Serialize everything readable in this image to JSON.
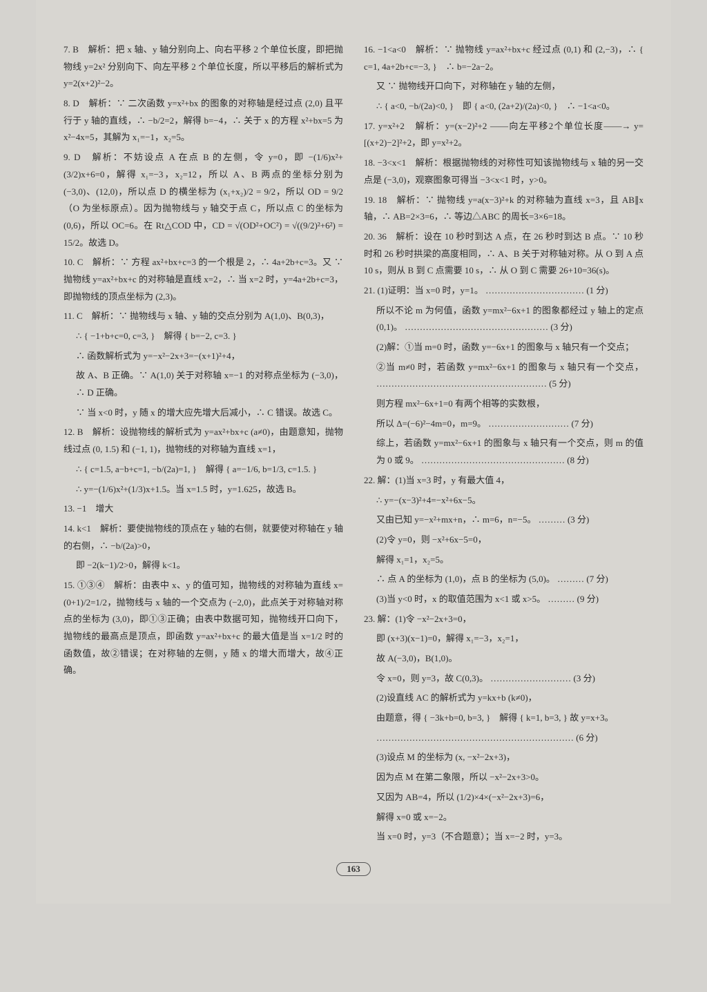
{
  "page_number": "163",
  "left": {
    "p7": "7. B　解析：把 x 轴、y 轴分别向上、向右平移 2 个单位长度，即把抛物线 y=2x² 分别向下、向左平移 2 个单位长度，所以平移后的解析式为 y=2(x+2)²−2。",
    "p8": "8. D　解析：∵ 二次函数 y=x²+bx 的图象的对称轴是经过点 (2,0) 且平行于 y 轴的直线，∴ −b/2=2，解得 b=−4，∴ 关于 x 的方程 x²+bx=5 为 x²−4x=5，其解为 x₁=−1，x₂=5。",
    "p9": "9. D　解析：不妨设点 A 在点 B 的左侧，令 y=0，即 −(1/6)x²+(3/2)x+6=0，解得 x₁=−3，x₂=12，所以 A、B 两点的坐标分别为 (−3,0)、(12,0)，所以点 D 的横坐标为 (x₁+x₂)/2 = 9/2，所以 OD = 9/2（O 为坐标原点）。因为抛物线与 y 轴交于点 C，所以点 C 的坐标为 (0,6)，所以 OC=6。在 Rt△COD 中，CD = √(OD²+OC²) = √((9/2)²+6²) = 15/2。故选 D。",
    "p10": "10. C　解析：∵ 方程 ax²+bx+c=3 的一个根是 2，∴ 4a+2b+c=3。又 ∵ 抛物线 y=ax²+bx+c 的对称轴是直线 x=2，∴ 当 x=2 时，y=4a+2b+c=3，即抛物线的顶点坐标为 (2,3)。",
    "p11a": "11. C　解析：∵ 抛物线与 x 轴、y 轴的交点分别为 A(1,0)、B(0,3)，",
    "p11b": "∴ { −1+b+c=0,  c=3, }　解得 { b=−2,  c=3. }",
    "p11c": "∴ 函数解析式为 y=−x²−2x+3=−(x+1)²+4，",
    "p11d": "故 A、B 正确。∵ A(1,0) 关于对称轴 x=−1 的对称点坐标为 (−3,0)，∴ D 正确。",
    "p11e": "∵ 当 x<0 时，y 随 x 的增大应先增大后减小，∴ C 错误。故选 C。",
    "p12a": "12. B　解析：设抛物线的解析式为 y=ax²+bx+c (a≠0)，由题意知，抛物线过点 (0, 1.5) 和 (−1, 1)，抛物线的对称轴为直线 x=1，",
    "p12b": "∴ { c=1.5,  a−b+c=1,  −b/(2a)=1, }　解得 { a=−1/6,  b=1/3,  c=1.5. }",
    "p12c": "∴ y=−(1/6)x²+(1/3)x+1.5。当 x=1.5 时，y=1.625，故选 B。",
    "p13": "13. −1　增大",
    "p14a": "14. k<1　解析：要使抛物线的顶点在 y 轴的右侧，就要使对称轴在 y 轴的右侧，∴ −b/(2a)>0，",
    "p14b": "即 −2(k−1)/2>0，解得 k<1。",
    "p15": "15. ①③④　解析：由表中 x、y 的值可知，抛物线的对称轴为直线 x=(0+1)/2=1/2，抛物线与 x 轴的一个交点为 (−2,0)，此点关于对称轴对称点的坐标为 (3,0)，即①③正确；由表中数据可知，抛物线开口向下，抛物线的最高点是顶点，即函数 y=ax²+bx+c 的最大值是当 x=1/2 时的函数值，故②错误；在对称轴的左侧，y 随 x 的增大而增大，故④正确。"
  },
  "right": {
    "p16a": "16. −1<a<0　解析：∵ 抛物线 y=ax²+bx+c 经过点 (0,1) 和 (2,−3)，∴ { c=1,  4a+2b+c=−3, }　∴ b=−2a−2。",
    "p16b": "又 ∵ 抛物线开口向下，对称轴在 y 轴的左侧，",
    "p16c": "∴ { a<0,  −b/(2a)<0, }　即 { a<0,  (2a+2)/(2a)<0, }　∴ −1<a<0。",
    "p17": "17. y=x²+2　解析：y=(x−2)²+2 ——向左平移2个单位长度——→ y=[(x+2)−2]²+2，即 y=x²+2。",
    "p18": "18. −3<x<1　解析：根据抛物线的对称性可知该抛物线与 x 轴的另一交点是 (−3,0)，观察图象可得当 −3<x<1 时，y>0。",
    "p19": "19. 18　解析：∵ 抛物线 y=a(x−3)²+k 的对称轴为直线 x=3，且 AB∥x 轴，∴ AB=2×3=6，∴ 等边△ABC 的周长=3×6=18。",
    "p20": "20. 36　解析：设在 10 秒时到达 A 点，在 26 秒时到达 B 点。∵ 10 秒时和 26 秒时拱梁的高度相同，∴ A、B 关于对称轴对称。从 O 到 A 点 10 s，则从 B 到 C 点需要 10 s，∴ 从 O 到 C 需要 26+10=36(s)。",
    "p21a": "21. (1)证明：当 x=0 时，y=1。 …………………………… (1 分)",
    "p21b": "所以不论 m 为何值，函数 y=mx²−6x+1 的图象都经过 y 轴上的定点 (0,1)。 ………………………………………… (3 分)",
    "p21c": "(2)解：①当 m=0 时，函数 y=−6x+1 的图象与 x 轴只有一个交点；",
    "p21d": "②当 m≠0 时，若函数 y=mx²−6x+1 的图象与 x 轴只有一个交点， ………………………………………………… (5 分)",
    "p21e": "则方程 mx²−6x+1=0 有两个相等的实数根，",
    "p21f": "所以 Δ=(−6)²−4m=0，m=9。 ……………………… (7 分)",
    "p21g": "综上，若函数 y=mx²−6x+1 的图象与 x 轴只有一个交点，则 m 的值为 0 或 9。 ………………………………………… (8 分)",
    "p22a": "22. 解：(1)当 x=3 时，y 有最大值 4，",
    "p22b": "∴ y=−(x−3)²+4=−x²+6x−5。",
    "p22c": "又由已知 y=−x²+mx+n，∴ m=6，n=−5。 ……… (3 分)",
    "p22d": "(2)令 y=0，则 −x²+6x−5=0，",
    "p22e": "解得 x₁=1，x₂=5。",
    "p22f": "∴ 点 A 的坐标为 (1,0)，点 B 的坐标为 (5,0)。 ……… (7 分)",
    "p22g": "(3)当 y<0 时，x 的取值范围为 x<1 或 x>5。 ……… (9 分)",
    "p23a": "23. 解：(1)令 −x²−2x+3=0，",
    "p23b": "即 (x+3)(x−1)=0，解得 x₁=−3，x₂=1，",
    "p23c": "故 A(−3,0)，B(1,0)。",
    "p23d": "令 x=0，则 y=3，故 C(0,3)。 ……………………… (3 分)",
    "p23e": "(2)设直线 AC 的解析式为 y=kx+b (k≠0)，",
    "p23f": "由题意，得 { −3k+b=0,  b=3, }　解得 { k=1,  b=3, } 故 y=x+3。",
    "p23g": "………………………………………………………… (6 分)",
    "p23h": "(3)设点 M 的坐标为 (x, −x²−2x+3)，",
    "p23i": "因为点 M 在第二象限，所以 −x²−2x+3>0。",
    "p23j": "又因为 AB=4，所以 (1/2)×4×(−x²−2x+3)=6，",
    "p23k": "解得 x=0 或 x=−2。",
    "p23l": "当 x=0 时，y=3（不合题意）；当 x=−2 时，y=3。"
  }
}
